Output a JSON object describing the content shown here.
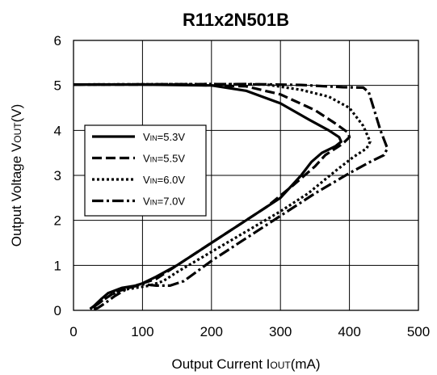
{
  "chart_data": {
    "type": "line",
    "title": "R11x2N501B",
    "xlabel": {
      "pre": "Output Current I",
      "sub": "OUT",
      "post": "(mA)"
    },
    "ylabel": {
      "pre": "Output Voltage V",
      "sub": "OUT",
      "post": "(V)"
    },
    "xlim": [
      0,
      500
    ],
    "ylim": [
      0,
      6
    ],
    "xticks": [
      0,
      100,
      200,
      300,
      400,
      500
    ],
    "yticks": [
      0,
      1,
      2,
      3,
      4,
      5,
      6
    ],
    "grid": true,
    "legend_position": "center-left",
    "series": [
      {
        "name": {
          "pre": "V",
          "sub": "IN",
          "post": "=5.3V"
        },
        "dash": "solid",
        "points": [
          [
            0,
            5.02
          ],
          [
            100,
            5.02
          ],
          [
            200,
            5.0
          ],
          [
            250,
            4.88
          ],
          [
            300,
            4.6
          ],
          [
            340,
            4.25
          ],
          [
            370,
            4.0
          ],
          [
            385,
            3.85
          ],
          [
            388,
            3.75
          ],
          [
            380,
            3.65
          ],
          [
            360,
            3.5
          ],
          [
            345,
            3.3
          ],
          [
            330,
            3.0
          ],
          [
            300,
            2.5
          ],
          [
            250,
            2.0
          ],
          [
            200,
            1.5
          ],
          [
            150,
            1.0
          ],
          [
            120,
            0.75
          ],
          [
            100,
            0.6
          ],
          [
            90,
            0.55
          ],
          [
            70,
            0.5
          ],
          [
            50,
            0.38
          ],
          [
            40,
            0.25
          ],
          [
            30,
            0.1
          ],
          [
            24,
            0.03
          ]
        ]
      },
      {
        "name": {
          "pre": "V",
          "sub": "IN",
          "post": "=5.5V"
        },
        "dash": "dashed",
        "points": [
          [
            0,
            5.02
          ],
          [
            150,
            5.02
          ],
          [
            250,
            4.98
          ],
          [
            300,
            4.8
          ],
          [
            350,
            4.45
          ],
          [
            380,
            4.15
          ],
          [
            398,
            3.95
          ],
          [
            400,
            3.85
          ],
          [
            390,
            3.7
          ],
          [
            365,
            3.45
          ],
          [
            350,
            3.2
          ],
          [
            320,
            2.8
          ],
          [
            280,
            2.3
          ],
          [
            230,
            1.8
          ],
          [
            180,
            1.3
          ],
          [
            140,
            0.9
          ],
          [
            120,
            0.7
          ],
          [
            100,
            0.6
          ],
          [
            80,
            0.5
          ],
          [
            60,
            0.4
          ],
          [
            45,
            0.25
          ],
          [
            30,
            0.08
          ],
          [
            24,
            0.03
          ]
        ]
      },
      {
        "name": {
          "pre": "V",
          "sub": "IN",
          "post": "=6.0V"
        },
        "dash": "dotted",
        "points": [
          [
            0,
            5.02
          ],
          [
            200,
            5.03
          ],
          [
            280,
            5.02
          ],
          [
            330,
            4.9
          ],
          [
            370,
            4.75
          ],
          [
            400,
            4.5
          ],
          [
            420,
            4.1
          ],
          [
            430,
            3.75
          ],
          [
            425,
            3.6
          ],
          [
            405,
            3.4
          ],
          [
            380,
            3.1
          ],
          [
            340,
            2.6
          ],
          [
            300,
            2.2
          ],
          [
            250,
            1.75
          ],
          [
            200,
            1.3
          ],
          [
            150,
            0.85
          ],
          [
            130,
            0.65
          ],
          [
            110,
            0.55
          ],
          [
            90,
            0.5
          ],
          [
            70,
            0.45
          ],
          [
            55,
            0.35
          ],
          [
            40,
            0.2
          ],
          [
            30,
            0.08
          ],
          [
            25,
            0.03
          ]
        ]
      },
      {
        "name": {
          "pre": "V",
          "sub": "IN",
          "post": "=7.0V"
        },
        "dash": "dashdot",
        "points": [
          [
            0,
            5.02
          ],
          [
            250,
            5.03
          ],
          [
            330,
            5.01
          ],
          [
            390,
            4.96
          ],
          [
            420,
            4.95
          ],
          [
            428,
            4.85
          ],
          [
            435,
            4.5
          ],
          [
            445,
            4.0
          ],
          [
            455,
            3.6
          ],
          [
            450,
            3.45
          ],
          [
            430,
            3.3
          ],
          [
            400,
            3.05
          ],
          [
            350,
            2.6
          ],
          [
            300,
            2.1
          ],
          [
            250,
            1.6
          ],
          [
            200,
            1.1
          ],
          [
            160,
            0.65
          ],
          [
            140,
            0.55
          ],
          [
            120,
            0.55
          ],
          [
            100,
            0.58
          ],
          [
            80,
            0.5
          ],
          [
            60,
            0.32
          ],
          [
            45,
            0.15
          ],
          [
            35,
            0.05
          ],
          [
            28,
            0.02
          ]
        ]
      }
    ]
  }
}
